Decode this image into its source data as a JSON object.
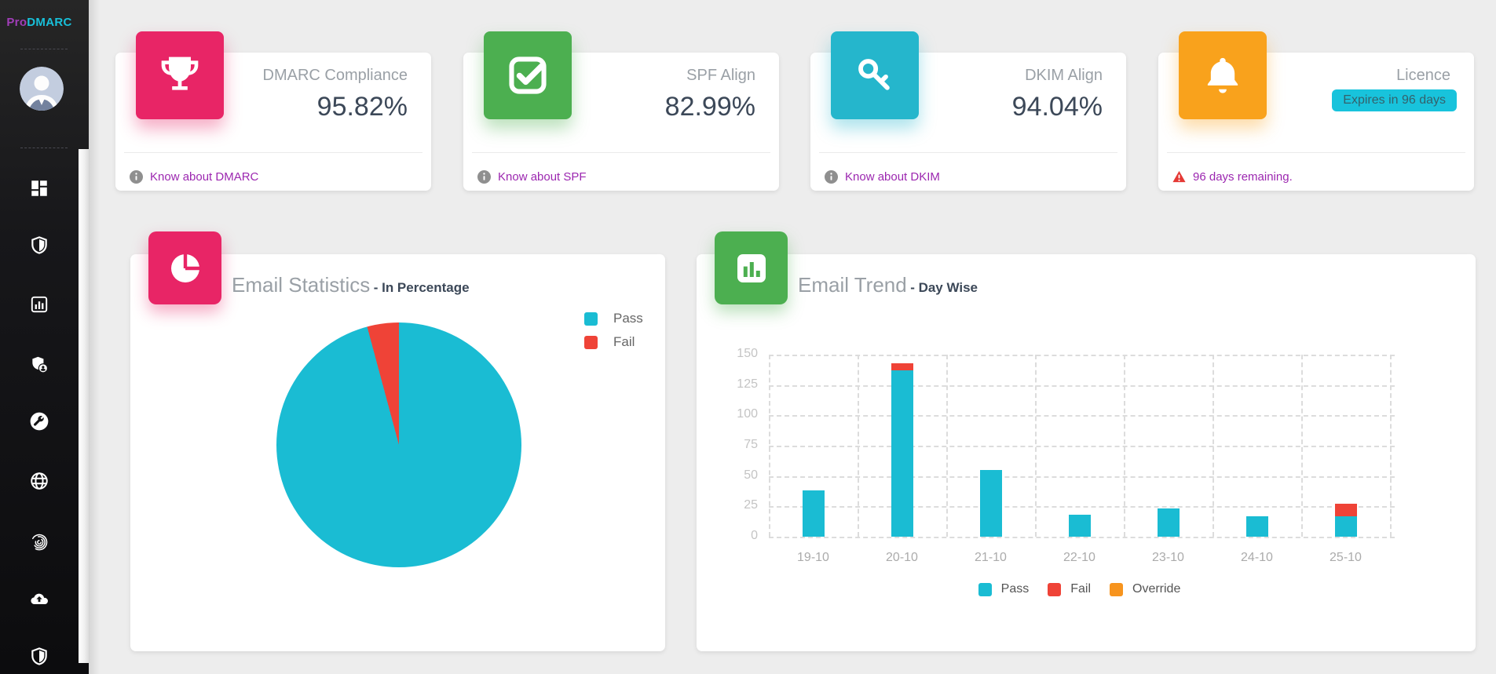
{
  "brand": {
    "pro": "Pro",
    "dmarc": "DMARC"
  },
  "sidebar": {
    "icons": [
      "dashboard",
      "security-shield",
      "reports",
      "user-shield",
      "tools",
      "domains-globe",
      "fingerprint",
      "cloud-upload",
      "shield-check"
    ]
  },
  "stat_cards": [
    {
      "title": "DMARC Compliance",
      "value": "95.82%",
      "footer_link": "Know about DMARC",
      "color": "#e82566",
      "icon": "trophy-icon"
    },
    {
      "title": "SPF Align",
      "value": "82.99%",
      "footer_link": "Know about SPF",
      "color": "#4caf50",
      "icon": "check-square-icon"
    },
    {
      "title": "DKIM Align",
      "value": "94.04%",
      "footer_link": "Know about DKIM",
      "color": "#25b6cc",
      "icon": "key-icon"
    },
    {
      "title": "Licence",
      "badge": "Expires in 96 days",
      "badge_color": "#18c3dc",
      "footer_warning": "96 days remaining.",
      "color": "#f9a21c",
      "icon": "bell-icon"
    }
  ],
  "email_statistics": {
    "title": "Email Statistics",
    "subtitle": "- In Percentage"
  },
  "email_trend": {
    "title": "Email Trend",
    "subtitle": "- Day Wise"
  },
  "chart_data": [
    {
      "type": "pie",
      "title": "Email Statistics - In Percentage",
      "labels": [
        "Pass",
        "Fail"
      ],
      "values": [
        95.82,
        4.18
      ],
      "colors": [
        "#1abcd3",
        "#ef4337"
      ],
      "legend_position": "top-right"
    },
    {
      "type": "bar",
      "stacked": true,
      "title": "Email Trend - Day Wise",
      "categories": [
        "19-10",
        "20-10",
        "21-10",
        "22-10",
        "23-10",
        "24-10",
        "25-10"
      ],
      "series": [
        {
          "name": "Pass",
          "color": "#1abcd3",
          "values": [
            38,
            137,
            55,
            18,
            23,
            17,
            17
          ]
        },
        {
          "name": "Fail",
          "color": "#ef4337",
          "values": [
            0,
            6,
            0,
            0,
            0,
            0,
            10
          ]
        },
        {
          "name": "Override",
          "color": "#f7941e",
          "values": [
            0,
            0,
            0,
            0,
            0,
            0,
            0
          ]
        }
      ],
      "ylim": [
        0,
        150
      ],
      "ytick_step": 25,
      "yticks": [
        0,
        25,
        50,
        75,
        100,
        125,
        150
      ],
      "grid": "dashed",
      "legend_position": "bottom"
    }
  ]
}
